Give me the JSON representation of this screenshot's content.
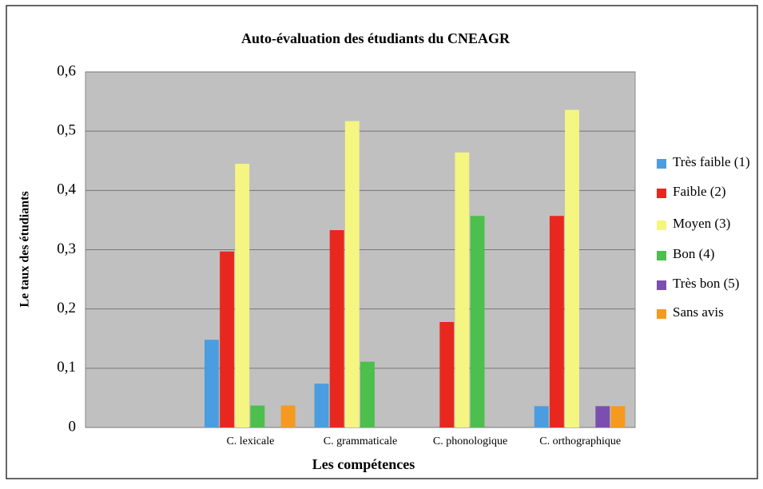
{
  "chart_data": {
    "type": "bar",
    "title": "Auto-évaluation des étudiants du CNEAGR",
    "x_label": "Les compétences",
    "y_label": "Le taux des étudiants",
    "categories": [
      null,
      "C. lexicale",
      "C. grammaticale",
      "C. phonologique",
      "C. orthographique"
    ],
    "series": [
      {
        "name": "Très faible (1)",
        "color": "#4a9de0",
        "values": [
          null,
          0.148,
          0.074,
          0,
          0.036
        ]
      },
      {
        "name": "Faible (2)",
        "color": "#e8281e",
        "values": [
          null,
          0.297,
          0.333,
          0.178,
          0.357
        ]
      },
      {
        "name": "Moyen (3)",
        "color": "#f5f582",
        "values": [
          null,
          0.445,
          0.517,
          0.464,
          0.536
        ]
      },
      {
        "name": "Bon (4)",
        "color": "#4cbf4c",
        "values": [
          null,
          0.037,
          0.111,
          0.357,
          0
        ]
      },
      {
        "name": "Très bon (5)",
        "color": "#7b4fb0",
        "values": [
          null,
          0,
          0,
          0,
          0.036
        ]
      },
      {
        "name": "Sans avis",
        "color": "#f59a1e",
        "values": [
          null,
          0.037,
          0,
          0,
          0.036
        ]
      }
    ],
    "ylim": [
      0,
      0.6
    ],
    "yticks": [
      0,
      {
        "value": 0.1,
        "label": "0,1"
      },
      {
        "value": 0.2,
        "label": "0,2"
      },
      {
        "value": 0.3,
        "label": "0,3"
      },
      {
        "value": 0.4,
        "label": "0,4"
      },
      {
        "value": 0.5,
        "label": "0,5"
      },
      {
        "value": 0.6,
        "label": "0,6"
      }
    ],
    "grid": true,
    "legend": "right"
  }
}
